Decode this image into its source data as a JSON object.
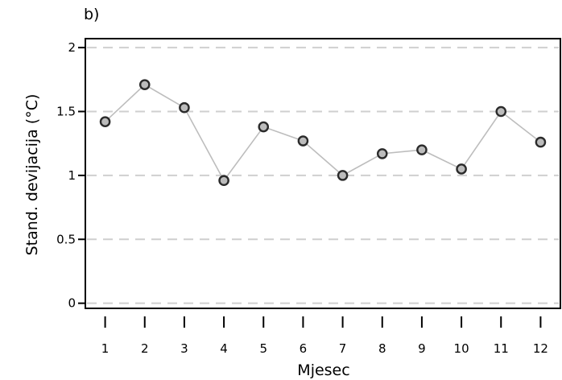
{
  "panel_label": "b)",
  "chart_data": {
    "type": "line",
    "title": "",
    "xlabel": "Mjesec",
    "ylabel": "Stand. devijacija (°C)",
    "x": [
      1,
      2,
      3,
      4,
      5,
      6,
      7,
      8,
      9,
      10,
      11,
      12
    ],
    "x_tick_labels": [
      "1",
      "2",
      "3",
      "4",
      "5",
      "6",
      "7",
      "8",
      "9",
      "10",
      "11",
      "12"
    ],
    "y_ticks": [
      0,
      0.5,
      1,
      1.5,
      2
    ],
    "y_tick_labels": [
      "0",
      "0.5",
      "1",
      "1.5",
      "2"
    ],
    "series": [
      {
        "values": [
          1.42,
          1.71,
          1.53,
          0.96,
          1.38,
          1.27,
          1.0,
          1.17,
          1.2,
          1.05,
          1.5,
          1.26
        ]
      }
    ],
    "xlim": [
      0.5,
      12.5
    ],
    "ylim": [
      -0.04,
      2.07
    ],
    "grid": "horizontal-dashed",
    "legend": "none",
    "colors": {
      "line": "#bdbdbd",
      "marker_fill": "#bcbcbc",
      "marker_edge": "#2b2b2b",
      "grid": "#cfcfcf"
    }
  }
}
